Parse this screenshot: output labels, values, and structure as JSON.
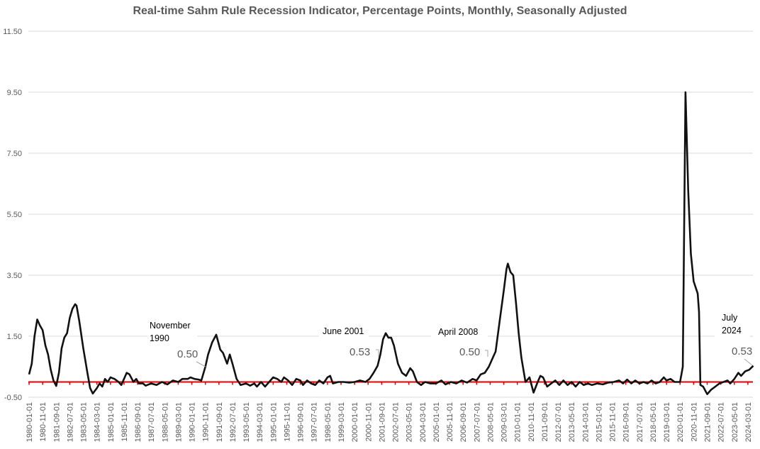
{
  "chart_data": {
    "type": "line",
    "title": "Real-time Sahm Rule Recession Indicator, Percentage Points, Monthly, Seasonally Adjusted",
    "xlabel": "",
    "ylabel": "",
    "ylim": [
      -0.5,
      11.5
    ],
    "yticks": [
      "-0.50",
      "1.50",
      "3.50",
      "5.50",
      "7.50",
      "9.50",
      "11.50"
    ],
    "ytick_values": [
      -0.5,
      1.5,
      3.5,
      5.5,
      7.5,
      9.5,
      11.5
    ],
    "grid": true,
    "xticks": [
      "1980-01-01",
      "1980-11-01",
      "1981-09-01",
      "1982-07-01",
      "1983-05-01",
      "1984-03-01",
      "1985-01-01",
      "1985-11-01",
      "1986-09-01",
      "1987-07-01",
      "1988-05-01",
      "1989-03-01",
      "1990-01-01",
      "1990-11-01",
      "1991-09-01",
      "1992-07-01",
      "1993-05-01",
      "1994-03-01",
      "1995-01-01",
      "1995-11-01",
      "1996-09-01",
      "1997-07-01",
      "1998-05-01",
      "1999-03-01",
      "2000-01-01",
      "2000-11-01",
      "2001-09-01",
      "2002-07-01",
      "2003-05-01",
      "2004-03-01",
      "2005-01-01",
      "2005-11-01",
      "2006-09-01",
      "2007-07-01",
      "2008-05-01",
      "2009-03-01",
      "2010-01-01",
      "2010-11-01",
      "2011-09-01",
      "2012-07-01",
      "2013-05-01",
      "2014-03-01",
      "2015-01-01",
      "2015-11-01",
      "2016-09-01",
      "2017-07-01",
      "2018-05-01",
      "2019-03-01",
      "2020-01-01",
      "2020-11-01",
      "2021-09-01",
      "2022-07-01",
      "2023-05-01",
      "2024-03-01"
    ],
    "reference_line": {
      "value": 0,
      "color": "#e00000"
    },
    "series": [
      {
        "name": "Real-time Sahm Rule Recession Indicator",
        "color": "#111111",
        "points": [
          [
            "1980-01",
            0.25
          ],
          [
            "1980-03",
            0.6
          ],
          [
            "1980-05",
            1.5
          ],
          [
            "1980-07",
            2.05
          ],
          [
            "1980-09",
            1.85
          ],
          [
            "1980-11",
            1.7
          ],
          [
            "1981-01",
            1.2
          ],
          [
            "1981-03",
            0.9
          ],
          [
            "1981-05",
            0.4
          ],
          [
            "1981-07",
            0.05
          ],
          [
            "1981-09",
            -0.13
          ],
          [
            "1981-11",
            0.3
          ],
          [
            "1982-01",
            1.1
          ],
          [
            "1982-03",
            1.45
          ],
          [
            "1982-05",
            1.6
          ],
          [
            "1982-07",
            2.1
          ],
          [
            "1982-09",
            2.4
          ],
          [
            "1982-11",
            2.55
          ],
          [
            "1982-12",
            2.5
          ],
          [
            "1983-02",
            2.0
          ],
          [
            "1983-05",
            1.1
          ],
          [
            "1983-08",
            0.3
          ],
          [
            "1983-10",
            -0.2
          ],
          [
            "1983-12",
            -0.38
          ],
          [
            "1984-03",
            -0.2
          ],
          [
            "1984-05",
            -0.05
          ],
          [
            "1984-07",
            -0.15
          ],
          [
            "1984-09",
            0.1
          ],
          [
            "1984-11",
            0.0
          ],
          [
            "1985-01",
            0.15
          ],
          [
            "1985-04",
            0.1
          ],
          [
            "1985-07",
            0.0
          ],
          [
            "1985-09",
            -0.1
          ],
          [
            "1986-01",
            0.3
          ],
          [
            "1986-03",
            0.25
          ],
          [
            "1986-06",
            0.0
          ],
          [
            "1986-08",
            0.1
          ],
          [
            "1986-10",
            -0.05
          ],
          [
            "1987-01",
            -0.05
          ],
          [
            "1987-03",
            -0.12
          ],
          [
            "1987-07",
            -0.05
          ],
          [
            "1987-11",
            -0.1
          ],
          [
            "1988-03",
            0.0
          ],
          [
            "1988-07",
            -0.08
          ],
          [
            "1988-11",
            0.05
          ],
          [
            "1989-03",
            0.0
          ],
          [
            "1989-06",
            0.1
          ],
          [
            "1989-10",
            0.1
          ],
          [
            "1989-12",
            0.15
          ],
          [
            "1990-03",
            0.1
          ],
          [
            "1990-06",
            0.08
          ],
          [
            "1990-08",
            0.05
          ],
          [
            "1990-11",
            0.5
          ],
          [
            "1991-01",
            0.9
          ],
          [
            "1991-04",
            1.3
          ],
          [
            "1991-07",
            1.55
          ],
          [
            "1991-10",
            1.06
          ],
          [
            "1991-12",
            0.95
          ],
          [
            "1992-03",
            0.6
          ],
          [
            "1992-05",
            0.9
          ],
          [
            "1992-07",
            0.6
          ],
          [
            "1992-10",
            0.1
          ],
          [
            "1993-01",
            -0.1
          ],
          [
            "1993-05",
            -0.05
          ],
          [
            "1993-08",
            -0.12
          ],
          [
            "1993-11",
            -0.05
          ],
          [
            "1994-01",
            -0.15
          ],
          [
            "1994-04",
            0.0
          ],
          [
            "1994-07",
            -0.15
          ],
          [
            "1994-10",
            0.0
          ],
          [
            "1995-01",
            0.15
          ],
          [
            "1995-04",
            0.1
          ],
          [
            "1995-07",
            0.0
          ],
          [
            "1995-09",
            0.15
          ],
          [
            "1995-12",
            0.05
          ],
          [
            "1996-03",
            -0.1
          ],
          [
            "1996-06",
            0.1
          ],
          [
            "1996-09",
            0.05
          ],
          [
            "1996-11",
            -0.1
          ],
          [
            "1997-02",
            0.05
          ],
          [
            "1997-05",
            -0.05
          ],
          [
            "1997-08",
            -0.1
          ],
          [
            "1997-11",
            0.05
          ],
          [
            "1998-02",
            -0.05
          ],
          [
            "1998-05",
            0.15
          ],
          [
            "1998-07",
            0.2
          ],
          [
            "1998-09",
            -0.05
          ],
          [
            "1999-01",
            0.0
          ],
          [
            "1999-05",
            0.0
          ],
          [
            "1999-09",
            -0.02
          ],
          [
            "2000-01",
            0.0
          ],
          [
            "2000-05",
            0.05
          ],
          [
            "2000-09",
            0.0
          ],
          [
            "2000-12",
            0.1
          ],
          [
            "2001-03",
            0.3
          ],
          [
            "2001-06",
            0.53
          ],
          [
            "2001-08",
            0.9
          ],
          [
            "2001-10",
            1.4
          ],
          [
            "2001-12",
            1.6
          ],
          [
            "2002-02",
            1.45
          ],
          [
            "2002-04",
            1.45
          ],
          [
            "2002-06",
            1.2
          ],
          [
            "2002-09",
            0.6
          ],
          [
            "2002-12",
            0.3
          ],
          [
            "2003-03",
            0.2
          ],
          [
            "2003-06",
            0.45
          ],
          [
            "2003-08",
            0.35
          ],
          [
            "2003-11",
            0.0
          ],
          [
            "2004-02",
            -0.1
          ],
          [
            "2004-05",
            0.0
          ],
          [
            "2004-09",
            -0.05
          ],
          [
            "2005-01",
            -0.05
          ],
          [
            "2005-05",
            0.05
          ],
          [
            "2005-08",
            -0.08
          ],
          [
            "2005-12",
            0.0
          ],
          [
            "2006-04",
            -0.05
          ],
          [
            "2006-08",
            0.05
          ],
          [
            "2006-12",
            -0.02
          ],
          [
            "2007-04",
            0.1
          ],
          [
            "2007-07",
            0.05
          ],
          [
            "2007-10",
            0.25
          ],
          [
            "2008-01",
            0.3
          ],
          [
            "2008-04",
            0.5
          ],
          [
            "2008-06",
            0.7
          ],
          [
            "2008-09",
            1.0
          ],
          [
            "2008-12",
            2.0
          ],
          [
            "2009-03",
            3.0
          ],
          [
            "2009-05",
            3.7
          ],
          [
            "2009-06",
            3.88
          ],
          [
            "2009-08",
            3.6
          ],
          [
            "2009-10",
            3.5
          ],
          [
            "2009-12",
            2.6
          ],
          [
            "2010-02",
            1.6
          ],
          [
            "2010-04",
            0.8
          ],
          [
            "2010-07",
            0.0
          ],
          [
            "2010-10",
            0.15
          ],
          [
            "2011-01",
            -0.35
          ],
          [
            "2011-04",
            0.0
          ],
          [
            "2011-06",
            0.2
          ],
          [
            "2011-08",
            0.15
          ],
          [
            "2011-11",
            -0.15
          ],
          [
            "2012-02",
            -0.05
          ],
          [
            "2012-05",
            0.05
          ],
          [
            "2012-08",
            -0.1
          ],
          [
            "2012-11",
            0.05
          ],
          [
            "2013-02",
            -0.1
          ],
          [
            "2013-05",
            0.0
          ],
          [
            "2013-08",
            -0.15
          ],
          [
            "2013-11",
            0.0
          ],
          [
            "2014-02",
            -0.1
          ],
          [
            "2014-05",
            -0.05
          ],
          [
            "2014-08",
            -0.1
          ],
          [
            "2014-12",
            -0.05
          ],
          [
            "2015-04",
            -0.08
          ],
          [
            "2015-08",
            -0.02
          ],
          [
            "2015-12",
            0.0
          ],
          [
            "2016-04",
            0.05
          ],
          [
            "2016-07",
            -0.05
          ],
          [
            "2016-10",
            0.08
          ],
          [
            "2017-01",
            -0.05
          ],
          [
            "2017-04",
            0.05
          ],
          [
            "2017-07",
            -0.05
          ],
          [
            "2017-10",
            0.0
          ],
          [
            "2018-01",
            -0.05
          ],
          [
            "2018-04",
            0.05
          ],
          [
            "2018-07",
            -0.05
          ],
          [
            "2018-10",
            0.0
          ],
          [
            "2019-01",
            0.15
          ],
          [
            "2019-03",
            0.05
          ],
          [
            "2019-06",
            0.1
          ],
          [
            "2019-09",
            0.0
          ],
          [
            "2020-01",
            0.0
          ],
          [
            "2020-02",
            0.25
          ],
          [
            "2020-03",
            0.5
          ],
          [
            "2020-04",
            5.0
          ],
          [
            "2020-05",
            9.5
          ],
          [
            "2020-07",
            6.3
          ],
          [
            "2020-09",
            4.2
          ],
          [
            "2020-11",
            3.3
          ],
          [
            "2021-02",
            2.9
          ],
          [
            "2021-03",
            2.3
          ],
          [
            "2021-04",
            -0.1
          ],
          [
            "2021-06",
            -0.15
          ],
          [
            "2021-09",
            -0.4
          ],
          [
            "2021-12",
            -0.25
          ],
          [
            "2022-03",
            -0.15
          ],
          [
            "2022-06",
            -0.05
          ],
          [
            "2022-09",
            0.0
          ],
          [
            "2022-12",
            0.05
          ],
          [
            "2023-02",
            -0.05
          ],
          [
            "2023-05",
            0.1
          ],
          [
            "2023-08",
            0.3
          ],
          [
            "2023-10",
            0.2
          ],
          [
            "2024-01",
            0.35
          ],
          [
            "2024-04",
            0.4
          ],
          [
            "2024-07",
            0.53
          ]
        ]
      }
    ],
    "annotations": [
      {
        "label_lines": [
          "November",
          "1990"
        ],
        "value": "0.50",
        "date": "1990-11"
      },
      {
        "label_lines": [
          "June 2001"
        ],
        "value": "0.53",
        "date": "2001-06"
      },
      {
        "label_lines": [
          "April 2008"
        ],
        "value": "0.50",
        "date": "2008-04"
      },
      {
        "label_lines": [
          "July",
          "2024"
        ],
        "value": "0.53",
        "date": "2024-07"
      }
    ]
  }
}
